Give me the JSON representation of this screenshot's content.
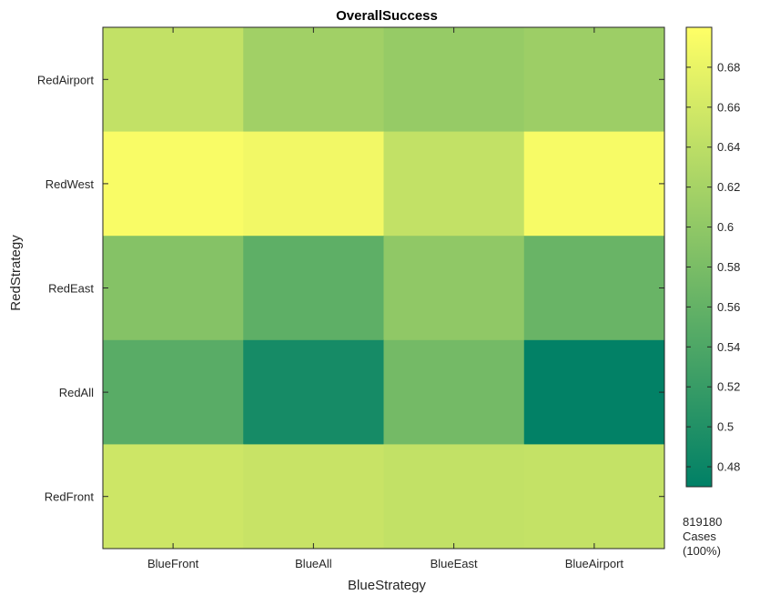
{
  "chart_data": {
    "type": "heatmap",
    "title": "OverallSuccess",
    "xlabel": "BlueStrategy",
    "ylabel": "RedStrategy",
    "x_categories": [
      "BlueFront",
      "BlueAll",
      "BlueEast",
      "BlueAirport"
    ],
    "y_categories": [
      "RedAirport",
      "RedWest",
      "RedEast",
      "RedAll",
      "RedFront"
    ],
    "values": [
      [
        0.645,
        0.615,
        0.605,
        0.612
      ],
      [
        0.695,
        0.688,
        0.645,
        0.693
      ],
      [
        0.59,
        0.555,
        0.6,
        0.565
      ],
      [
        0.55,
        0.49,
        0.575,
        0.472
      ],
      [
        0.655,
        0.65,
        0.645,
        0.647
      ]
    ],
    "colorbar": {
      "min": 0.47,
      "max": 0.7,
      "ticks": [
        0.48,
        0.5,
        0.52,
        0.54,
        0.56,
        0.58,
        0.6,
        0.62,
        0.64,
        0.66,
        0.68
      ],
      "colormap": "summer",
      "color_low": "#008066",
      "color_high": "#FFFF66"
    },
    "note": {
      "line1": "819180",
      "line2": "Cases",
      "line3": "(100%)"
    }
  }
}
